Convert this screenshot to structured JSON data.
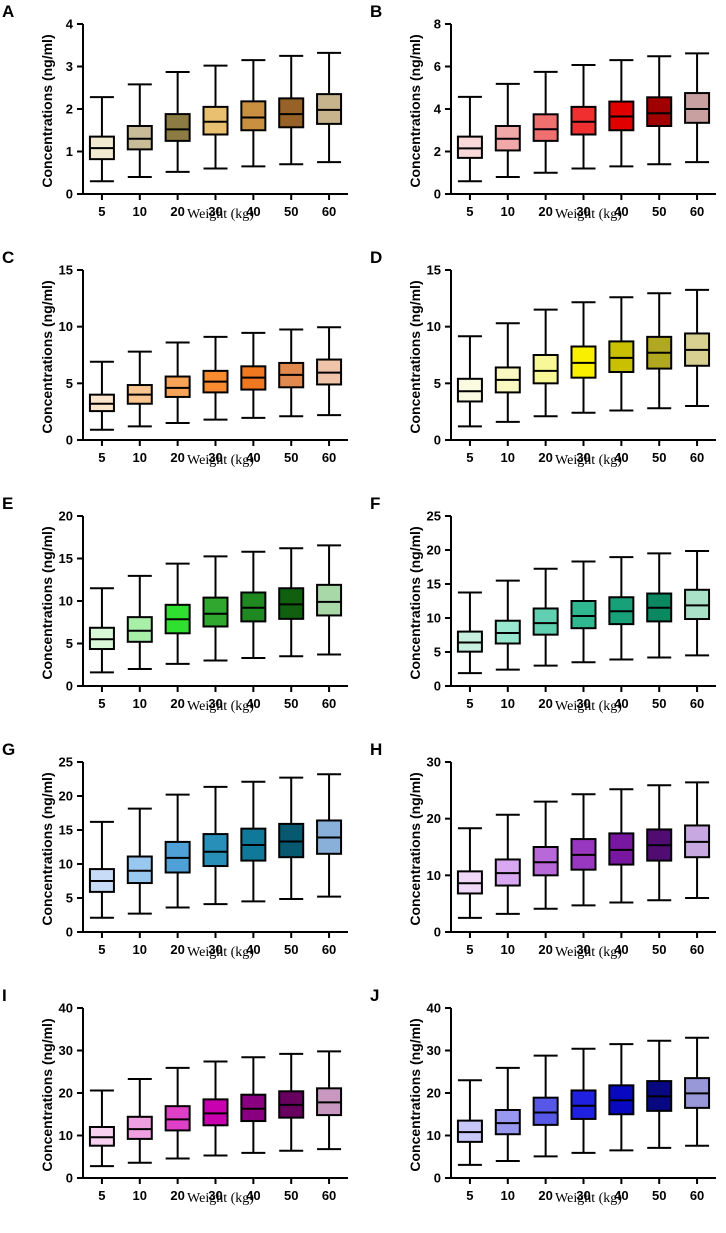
{
  "chart_data": [
    {
      "panel": "A",
      "type": "box",
      "xlabel": "Weight (kg)",
      "ylabel": "Concentrations (ng/ml)",
      "categories": [
        "5",
        "10",
        "20",
        "30",
        "40",
        "50",
        "60"
      ],
      "ylim": [
        0,
        4
      ],
      "yticks": [
        0,
        1,
        2,
        3,
        4
      ],
      "colors": [
        "#f2ead0",
        "#c8bc98",
        "#8c7c44",
        "#e8c070",
        "#c89040",
        "#966228",
        "#c8b48c"
      ],
      "boxes": [
        {
          "min": 0.3,
          "q1": 0.82,
          "median": 1.08,
          "q3": 1.35,
          "max": 2.28
        },
        {
          "min": 0.4,
          "q1": 1.05,
          "median": 1.3,
          "q3": 1.6,
          "max": 2.58
        },
        {
          "min": 0.52,
          "q1": 1.25,
          "median": 1.52,
          "q3": 1.88,
          "max": 2.87
        },
        {
          "min": 0.6,
          "q1": 1.4,
          "median": 1.7,
          "q3": 2.05,
          "max": 3.02
        },
        {
          "min": 0.65,
          "q1": 1.5,
          "median": 1.8,
          "q3": 2.18,
          "max": 3.15
        },
        {
          "min": 0.7,
          "q1": 1.57,
          "median": 1.88,
          "q3": 2.25,
          "max": 3.25
        },
        {
          "min": 0.75,
          "q1": 1.65,
          "median": 1.98,
          "q3": 2.35,
          "max": 3.32
        }
      ]
    },
    {
      "panel": "B",
      "type": "box",
      "xlabel": "Weight (kg)",
      "ylabel": "Concentrations (ng/ml)",
      "categories": [
        "5",
        "10",
        "20",
        "30",
        "40",
        "50",
        "60"
      ],
      "ylim": [
        0,
        8
      ],
      "yticks": [
        0,
        2,
        4,
        6,
        8
      ],
      "colors": [
        "#f8d8d8",
        "#f0a8a8",
        "#f07070",
        "#f03030",
        "#e00000",
        "#a00000",
        "#c8a0a0"
      ],
      "boxes": [
        {
          "min": 0.6,
          "q1": 1.7,
          "median": 2.15,
          "q3": 2.7,
          "max": 4.57
        },
        {
          "min": 0.8,
          "q1": 2.05,
          "median": 2.6,
          "q3": 3.2,
          "max": 5.18
        },
        {
          "min": 1.0,
          "q1": 2.5,
          "median": 3.05,
          "q3": 3.75,
          "max": 5.75
        },
        {
          "min": 1.2,
          "q1": 2.8,
          "median": 3.4,
          "q3": 4.1,
          "max": 6.07
        },
        {
          "min": 1.3,
          "q1": 3.0,
          "median": 3.65,
          "q3": 4.35,
          "max": 6.3
        },
        {
          "min": 1.4,
          "q1": 3.2,
          "median": 3.8,
          "q3": 4.55,
          "max": 6.48
        },
        {
          "min": 1.5,
          "q1": 3.35,
          "median": 4.0,
          "q3": 4.75,
          "max": 6.62
        }
      ]
    },
    {
      "panel": "C",
      "type": "box",
      "xlabel": "Weight (kg)",
      "ylabel": "Concentrations (ng/ml)",
      "categories": [
        "5",
        "10",
        "20",
        "30",
        "40",
        "50",
        "60"
      ],
      "ylim": [
        0,
        15
      ],
      "yticks": [
        0,
        5,
        10,
        15
      ],
      "colors": [
        "#fde6cc",
        "#fbc590",
        "#f8a458",
        "#f88a30",
        "#f07820",
        "#e08a50",
        "#f0c4a8"
      ],
      "boxes": [
        {
          "min": 0.9,
          "q1": 2.55,
          "median": 3.2,
          "q3": 4.0,
          "max": 6.9
        },
        {
          "min": 1.2,
          "q1": 3.2,
          "median": 4.0,
          "q3": 4.85,
          "max": 7.8
        },
        {
          "min": 1.5,
          "q1": 3.8,
          "median": 4.6,
          "q3": 5.6,
          "max": 8.6
        },
        {
          "min": 1.8,
          "q1": 4.2,
          "median": 5.15,
          "q3": 6.1,
          "max": 9.1
        },
        {
          "min": 1.95,
          "q1": 4.45,
          "median": 5.5,
          "q3": 6.5,
          "max": 9.45
        },
        {
          "min": 2.1,
          "q1": 4.65,
          "median": 5.75,
          "q3": 6.8,
          "max": 9.75
        },
        {
          "min": 2.2,
          "q1": 4.9,
          "median": 5.95,
          "q3": 7.1,
          "max": 9.95
        }
      ]
    },
    {
      "panel": "D",
      "type": "box",
      "xlabel": "Weight (kg)",
      "ylabel": "Concentrations (ng/ml)",
      "categories": [
        "5",
        "10",
        "20",
        "30",
        "40",
        "50",
        "60"
      ],
      "ylim": [
        0,
        15
      ],
      "yticks": [
        0,
        5,
        10,
        15
      ],
      "colors": [
        "#fafae0",
        "#f8f8c0",
        "#f8f898",
        "#f8f000",
        "#c8c000",
        "#b0a820",
        "#d8d090"
      ],
      "boxes": [
        {
          "min": 1.2,
          "q1": 3.4,
          "median": 4.3,
          "q3": 5.4,
          "max": 9.15
        },
        {
          "min": 1.6,
          "q1": 4.2,
          "median": 5.3,
          "q3": 6.4,
          "max": 10.3
        },
        {
          "min": 2.1,
          "q1": 5.0,
          "median": 6.1,
          "q3": 7.5,
          "max": 11.5
        },
        {
          "min": 2.4,
          "q1": 5.5,
          "median": 6.8,
          "q3": 8.25,
          "max": 12.15
        },
        {
          "min": 2.6,
          "q1": 6.0,
          "median": 7.25,
          "q3": 8.7,
          "max": 12.6
        },
        {
          "min": 2.8,
          "q1": 6.3,
          "median": 7.7,
          "q3": 9.1,
          "max": 12.95
        },
        {
          "min": 3.0,
          "q1": 6.55,
          "median": 7.95,
          "q3": 9.4,
          "max": 13.25
        }
      ]
    },
    {
      "panel": "E",
      "type": "box",
      "xlabel": "Weight (kg)",
      "ylabel": "Concentrations (ng/ml)",
      "categories": [
        "5",
        "10",
        "20",
        "30",
        "40",
        "50",
        "60"
      ],
      "ylim": [
        0,
        20
      ],
      "yticks": [
        0,
        5,
        10,
        15,
        20
      ],
      "colors": [
        "#d8f8d8",
        "#a8f0a8",
        "#30e030",
        "#30a830",
        "#208820",
        "#106010",
        "#a8d8a8"
      ],
      "boxes": [
        {
          "min": 1.6,
          "q1": 4.35,
          "median": 5.5,
          "q3": 6.85,
          "max": 11.5
        },
        {
          "min": 2.0,
          "q1": 5.2,
          "median": 6.5,
          "q3": 8.1,
          "max": 12.95
        },
        {
          "min": 2.6,
          "q1": 6.2,
          "median": 7.85,
          "q3": 9.55,
          "max": 14.4
        },
        {
          "min": 3.0,
          "q1": 7.0,
          "median": 8.5,
          "q3": 10.4,
          "max": 15.25
        },
        {
          "min": 3.3,
          "q1": 7.6,
          "median": 9.2,
          "q3": 11.0,
          "max": 15.8
        },
        {
          "min": 3.5,
          "q1": 7.9,
          "median": 9.6,
          "q3": 11.5,
          "max": 16.2
        },
        {
          "min": 3.7,
          "q1": 8.3,
          "median": 9.9,
          "q3": 11.9,
          "max": 16.55
        }
      ]
    },
    {
      "panel": "F",
      "type": "box",
      "xlabel": "Weight (kg)",
      "ylabel": "Concentrations (ng/ml)",
      "categories": [
        "5",
        "10",
        "20",
        "30",
        "40",
        "50",
        "60"
      ],
      "ylim": [
        0,
        25
      ],
      "yticks": [
        0,
        5,
        10,
        15,
        20,
        25
      ],
      "colors": [
        "#c8f0e0",
        "#98e8d0",
        "#60d0b0",
        "#30b890",
        "#18a078",
        "#0c8860",
        "#a8e0c8"
      ],
      "boxes": [
        {
          "min": 1.9,
          "q1": 5.05,
          "median": 6.4,
          "q3": 8.0,
          "max": 13.75
        },
        {
          "min": 2.4,
          "q1": 6.25,
          "median": 7.8,
          "q3": 9.6,
          "max": 15.5
        },
        {
          "min": 3.0,
          "q1": 7.55,
          "median": 9.25,
          "q3": 11.4,
          "max": 17.25
        },
        {
          "min": 3.5,
          "q1": 8.5,
          "median": 10.3,
          "q3": 12.5,
          "max": 18.3
        },
        {
          "min": 3.9,
          "q1": 9.1,
          "median": 11.0,
          "q3": 13.05,
          "max": 18.95
        },
        {
          "min": 4.2,
          "q1": 9.5,
          "median": 11.5,
          "q3": 13.6,
          "max": 19.5
        },
        {
          "min": 4.5,
          "q1": 9.85,
          "median": 11.85,
          "q3": 14.15,
          "max": 19.85
        }
      ]
    },
    {
      "panel": "G",
      "type": "box",
      "xlabel": "Weight (kg)",
      "ylabel": "Concentrations (ng/ml)",
      "categories": [
        "5",
        "10",
        "20",
        "30",
        "40",
        "50",
        "60"
      ],
      "ylim": [
        0,
        25
      ],
      "yticks": [
        0,
        5,
        10,
        15,
        20,
        25
      ],
      "colors": [
        "#c8dcf8",
        "#98c8f0",
        "#50a0d8",
        "#2890b8",
        "#107898",
        "#085870",
        "#88b0d8"
      ],
      "boxes": [
        {
          "min": 2.1,
          "q1": 5.9,
          "median": 7.5,
          "q3": 9.25,
          "max": 16.2
        },
        {
          "min": 2.7,
          "q1": 7.2,
          "median": 9.0,
          "q3": 11.1,
          "max": 18.15
        },
        {
          "min": 3.6,
          "q1": 8.75,
          "median": 10.9,
          "q3": 13.25,
          "max": 20.2
        },
        {
          "min": 4.1,
          "q1": 9.7,
          "median": 11.8,
          "q3": 14.4,
          "max": 21.35
        },
        {
          "min": 4.5,
          "q1": 10.5,
          "median": 12.8,
          "q3": 15.2,
          "max": 22.1
        },
        {
          "min": 4.85,
          "q1": 11.0,
          "median": 13.3,
          "q3": 15.9,
          "max": 22.7
        },
        {
          "min": 5.2,
          "q1": 11.5,
          "median": 13.9,
          "q3": 16.4,
          "max": 23.2
        }
      ]
    },
    {
      "panel": "H",
      "type": "box",
      "xlabel": "Weight (kg)",
      "ylabel": "Concentrations (ng/ml)",
      "categories": [
        "5",
        "10",
        "20",
        "30",
        "40",
        "50",
        "60"
      ],
      "ylim": [
        0,
        30
      ],
      "yticks": [
        0,
        10,
        20,
        30
      ],
      "colors": [
        "#f0d8f8",
        "#d8a8f0",
        "#b868d8",
        "#9838c0",
        "#7818a0",
        "#500c70",
        "#c8a8e0"
      ],
      "boxes": [
        {
          "min": 2.5,
          "q1": 6.8,
          "median": 8.6,
          "q3": 10.7,
          "max": 18.3
        },
        {
          "min": 3.2,
          "q1": 8.2,
          "median": 10.4,
          "q3": 12.8,
          "max": 20.7
        },
        {
          "min": 4.1,
          "q1": 10.0,
          "median": 12.3,
          "q3": 15.0,
          "max": 23.0
        },
        {
          "min": 4.7,
          "q1": 11.0,
          "median": 13.6,
          "q3": 16.4,
          "max": 24.3
        },
        {
          "min": 5.2,
          "q1": 11.9,
          "median": 14.5,
          "q3": 17.4,
          "max": 25.2
        },
        {
          "min": 5.6,
          "q1": 12.6,
          "median": 15.3,
          "q3": 18.1,
          "max": 25.9
        },
        {
          "min": 6.0,
          "q1": 13.2,
          "median": 15.9,
          "q3": 18.8,
          "max": 26.4
        }
      ]
    },
    {
      "panel": "I",
      "type": "box",
      "xlabel": "Weight (kg)",
      "ylabel": "Concentrations (ng/ml)",
      "categories": [
        "5",
        "10",
        "20",
        "30",
        "40",
        "50",
        "60"
      ],
      "ylim": [
        0,
        40
      ],
      "yticks": [
        0,
        10,
        20,
        30,
        40
      ],
      "colors": [
        "#f8d0f0",
        "#f0a0e0",
        "#e040c8",
        "#c800b0",
        "#880080",
        "#680060",
        "#c898c0"
      ],
      "boxes": [
        {
          "min": 2.8,
          "q1": 7.6,
          "median": 9.6,
          "q3": 12.0,
          "max": 20.6
        },
        {
          "min": 3.6,
          "q1": 9.2,
          "median": 11.5,
          "q3": 14.4,
          "max": 23.3
        },
        {
          "min": 4.6,
          "q1": 11.2,
          "median": 13.8,
          "q3": 16.9,
          "max": 25.9
        },
        {
          "min": 5.3,
          "q1": 12.4,
          "median": 15.2,
          "q3": 18.5,
          "max": 27.4
        },
        {
          "min": 5.9,
          "q1": 13.4,
          "median": 16.3,
          "q3": 19.6,
          "max": 28.4
        },
        {
          "min": 6.4,
          "q1": 14.2,
          "median": 17.2,
          "q3": 20.4,
          "max": 29.2
        },
        {
          "min": 6.8,
          "q1": 14.8,
          "median": 17.8,
          "q3": 21.1,
          "max": 29.8
        }
      ]
    },
    {
      "panel": "J",
      "type": "box",
      "xlabel": "Weight (kg)",
      "ylabel": "Concentrations (ng/ml)",
      "categories": [
        "5",
        "10",
        "20",
        "30",
        "40",
        "50",
        "60"
      ],
      "ylim": [
        0,
        40
      ],
      "yticks": [
        0,
        10,
        20,
        30,
        40
      ],
      "colors": [
        "#c8c8f8",
        "#9898f0",
        "#5858e8",
        "#2020e0",
        "#0808c0",
        "#080880",
        "#9898d8"
      ],
      "boxes": [
        {
          "min": 3.1,
          "q1": 8.5,
          "median": 10.8,
          "q3": 13.5,
          "max": 23.0
        },
        {
          "min": 4.0,
          "q1": 10.3,
          "median": 12.9,
          "q3": 16.0,
          "max": 25.9
        },
        {
          "min": 5.1,
          "q1": 12.5,
          "median": 15.4,
          "q3": 18.9,
          "max": 28.8
        },
        {
          "min": 5.9,
          "q1": 13.9,
          "median": 17.0,
          "q3": 20.6,
          "max": 30.4
        },
        {
          "min": 6.5,
          "q1": 15.0,
          "median": 18.3,
          "q3": 21.8,
          "max": 31.5
        },
        {
          "min": 7.1,
          "q1": 15.8,
          "median": 19.2,
          "q3": 22.8,
          "max": 32.3
        },
        {
          "min": 7.6,
          "q1": 16.5,
          "median": 19.9,
          "q3": 23.5,
          "max": 33.0
        }
      ]
    }
  ]
}
